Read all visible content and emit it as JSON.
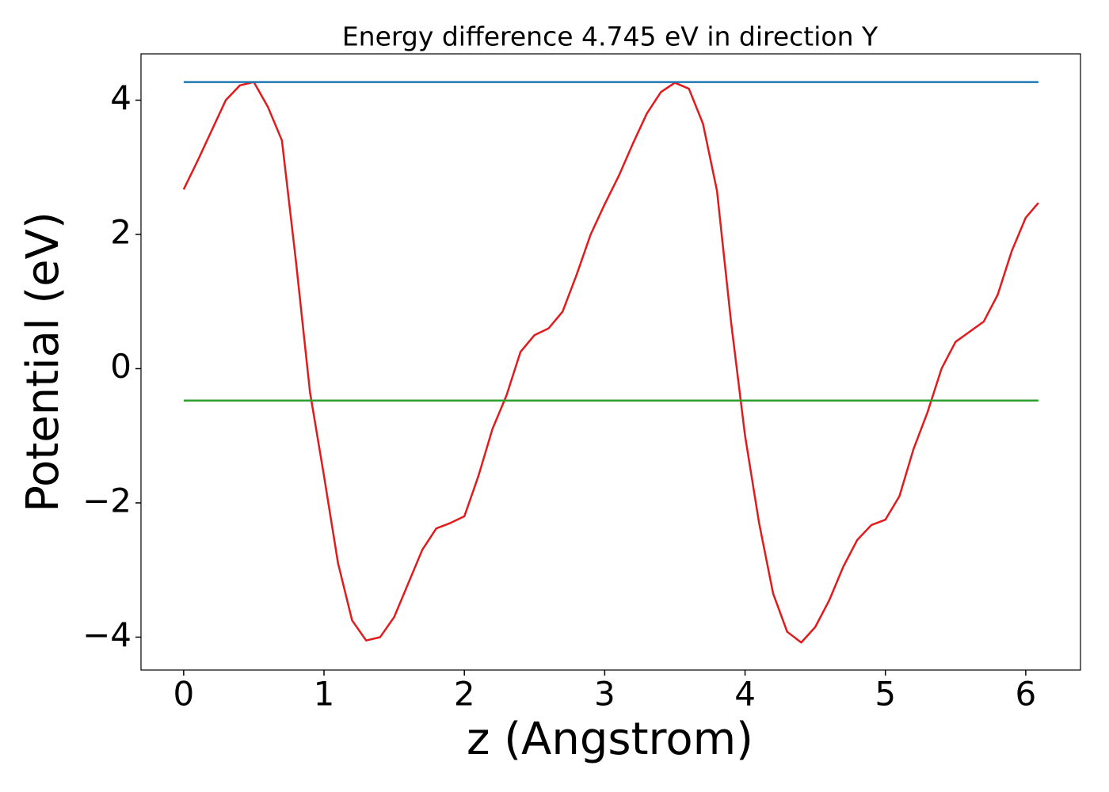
{
  "chart_data": {
    "type": "line",
    "title": "Energy difference 4.745 eV in direction Y",
    "xlabel": "z (Angstrom)",
    "ylabel": "Potential (eV)",
    "xlim": [
      -0.304,
      6.39
    ],
    "ylim": [
      -4.49,
      4.69
    ],
    "xticks": [
      0,
      1,
      2,
      3,
      4,
      5,
      6
    ],
    "yticks": [
      {
        "value": -4,
        "label": "−4"
      },
      {
        "value": -2,
        "label": "−2"
      },
      0,
      2,
      4
    ],
    "series": [
      {
        "color": "#e31a1c",
        "x": [
          0,
          0.1,
          0.2,
          0.3,
          0.4,
          0.5,
          0.6,
          0.7,
          0.8,
          0.9,
          1.0,
          1.1,
          1.2,
          1.3,
          1.4,
          1.5,
          1.6,
          1.7,
          1.8,
          1.9,
          2.0,
          2.1,
          2.2,
          2.3,
          2.4,
          2.5,
          2.6,
          2.7,
          2.8,
          2.9,
          3.0,
          3.1,
          3.2,
          3.3,
          3.4,
          3.5,
          3.6,
          3.7,
          3.8,
          3.9,
          4.0,
          4.1,
          4.2,
          4.3,
          4.4,
          4.5,
          4.6,
          4.7,
          4.8,
          4.9,
          5.0,
          5.1,
          5.2,
          5.3,
          5.4,
          5.5,
          5.6,
          5.7,
          5.8,
          5.9,
          6.0,
          6.09
        ],
        "values": [
          2.67,
          3.1,
          3.55,
          4.0,
          4.22,
          4.27,
          3.9,
          3.4,
          1.6,
          -0.35,
          -1.6,
          -2.9,
          -3.75,
          -4.05,
          -4.0,
          -3.7,
          -3.2,
          -2.7,
          -2.38,
          -2.3,
          -2.2,
          -1.6,
          -0.9,
          -0.4,
          0.25,
          0.5,
          0.6,
          0.85,
          1.4,
          2.0,
          2.45,
          2.87,
          3.35,
          3.8,
          4.12,
          4.26,
          4.17,
          3.65,
          2.65,
          0.7,
          -1.0,
          -2.3,
          -3.35,
          -3.92,
          -4.08,
          -3.85,
          -3.45,
          -2.95,
          -2.55,
          -2.33,
          -2.25,
          -1.9,
          -1.2,
          -0.65,
          0.0,
          0.4,
          0.55,
          0.7,
          1.1,
          1.75,
          2.25,
          2.47
        ]
      },
      {
        "color": "#1f77b4",
        "x": [
          0,
          6.09
        ],
        "values": [
          4.27,
          4.27
        ]
      },
      {
        "color": "#2ca02c",
        "x": [
          0,
          6.09
        ],
        "values": [
          -0.475,
          -0.475
        ]
      }
    ]
  }
}
